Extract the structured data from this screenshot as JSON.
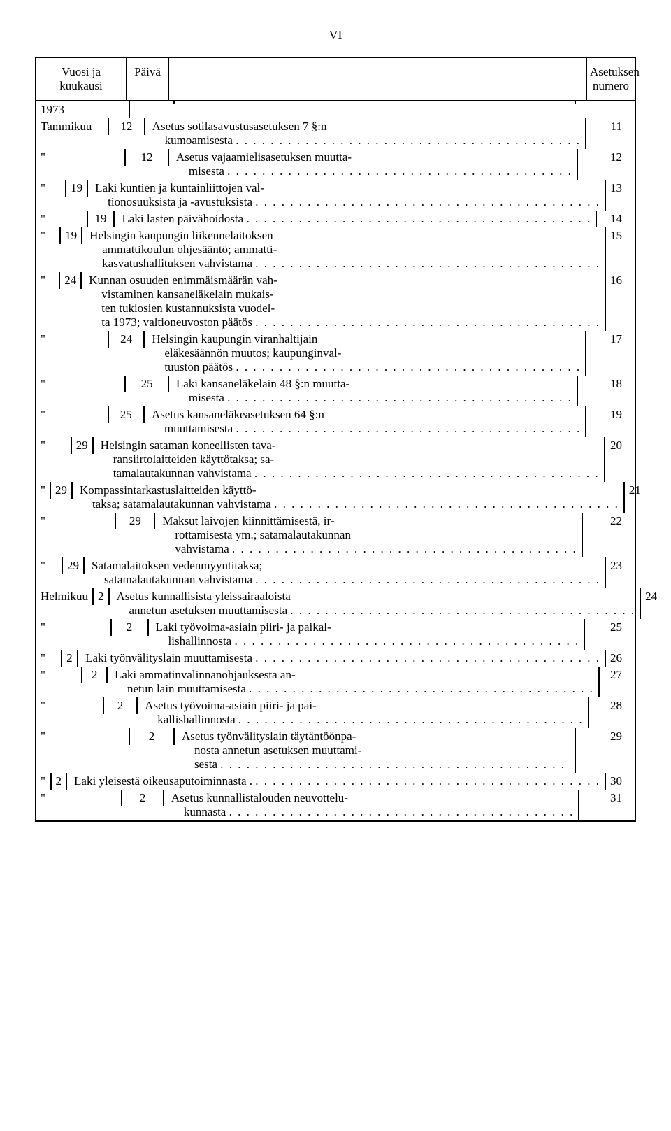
{
  "page_numeral": "VI",
  "headers": {
    "col1": "Vuosi ja kuukausi",
    "col2": "Päivä",
    "col3": "",
    "col4": "Asetuksen numero"
  },
  "year": "1973",
  "entries": [
    {
      "month": "Tammikuu",
      "day": "12",
      "lines": [
        "Asetus sotilasavustusasetuksen 7 §:n",
        "kumoamisesta"
      ],
      "num": "11"
    },
    {
      "month": "\"",
      "day": "12",
      "lines": [
        "Asetus vajaamielisasetuksen muutta-",
        "misesta"
      ],
      "num": "12"
    },
    {
      "month": "\"",
      "day": "19",
      "lines": [
        "Laki kuntien ja kuntainliittojen val-",
        "tionosuuksista ja -avustuksista"
      ],
      "num": "13"
    },
    {
      "month": "\"",
      "day": "19",
      "lines": [
        "Laki lasten päivähoidosta"
      ],
      "num": "14"
    },
    {
      "month": "\"",
      "day": "19",
      "lines": [
        "Helsingin kaupungin liikennelaitoksen",
        "ammattikoulun ohjesääntö; ammatti-",
        "kasvatushallituksen vahvistama"
      ],
      "num": "15"
    },
    {
      "month": "\"",
      "day": "24",
      "lines": [
        "Kunnan osuuden enimmäismäärän vah-",
        "vistaminen kansaneläkelain mukais-",
        "ten tukiosien kustannuksista vuodel-",
        "ta 1973; valtioneuvoston päätös"
      ],
      "num": "16"
    },
    {
      "month": "\"",
      "day": "24",
      "lines": [
        "Helsingin kaupungin viranhaltijain",
        "eläkesäännön muutos; kaupunginval-",
        "tuuston päätös"
      ],
      "num": "17"
    },
    {
      "month": "\"",
      "day": "25",
      "lines": [
        "Laki kansaneläkelain 48 §:n muutta-",
        "misesta"
      ],
      "num": "18"
    },
    {
      "month": "\"",
      "day": "25",
      "lines": [
        "Asetus kansaneläkeasetuksen 64 §:n",
        "muuttamisesta"
      ],
      "num": "19"
    },
    {
      "month": "\"",
      "day": "29",
      "lines": [
        "Helsingin sataman koneellisten tava-",
        "ransiirtolaitteiden käyttötaksa; sa-",
        "tamalautakunnan vahvistama"
      ],
      "num": "20"
    },
    {
      "month": "\"",
      "day": "29",
      "lines": [
        "Kompassintarkastuslaitteiden käyttö-",
        "taksa; satamalautakunnan vahvistama"
      ],
      "num": "21"
    },
    {
      "month": "\"",
      "day": "29",
      "lines": [
        "Maksut laivojen kiinnittämisestä, ir-",
        "rottamisesta ym.; satamalautakunnan",
        "vahvistama"
      ],
      "num": "22"
    },
    {
      "month": "\"",
      "day": "29",
      "lines": [
        "Satamalaitoksen vedenmyyntitaksa;",
        "satamalautakunnan vahvistama"
      ],
      "num": "23"
    },
    {
      "month": "Helmikuu",
      "day": "2",
      "lines": [
        "Asetus kunnallisista yleissairaaloista",
        "annetun asetuksen muuttamisesta"
      ],
      "num": "24"
    },
    {
      "month": "\"",
      "day": "2",
      "lines": [
        "Laki työvoima-asiain piiri- ja paikal-",
        "lishallinnosta"
      ],
      "num": "25"
    },
    {
      "month": "\"",
      "day": "2",
      "lines": [
        "Laki työnvälityslain muuttamisesta"
      ],
      "num": "26"
    },
    {
      "month": "\"",
      "day": "2",
      "lines": [
        "Laki ammatinvalinnanohjauksesta an-",
        "netun lain muuttamisesta"
      ],
      "num": "27"
    },
    {
      "month": "\"",
      "day": "2",
      "lines": [
        "Asetus työvoima-asiain piiri- ja pai-",
        "kallishallinnosta"
      ],
      "num": "28"
    },
    {
      "month": "\"",
      "day": "2",
      "lines": [
        "Asetus työnvälityslain täytäntöönpa-",
        "nosta annetun asetuksen muuttami-",
        "sesta"
      ],
      "num": "29"
    },
    {
      "month": "\"",
      "day": "2",
      "lines": [
        "Laki yleisestä oikeusaputoiminnasta ."
      ],
      "num": "30"
    },
    {
      "month": "\"",
      "day": "2",
      "lines": [
        "Asetus kunnallistalouden neuvottelu-",
        "kunnasta"
      ],
      "num": "31"
    }
  ]
}
